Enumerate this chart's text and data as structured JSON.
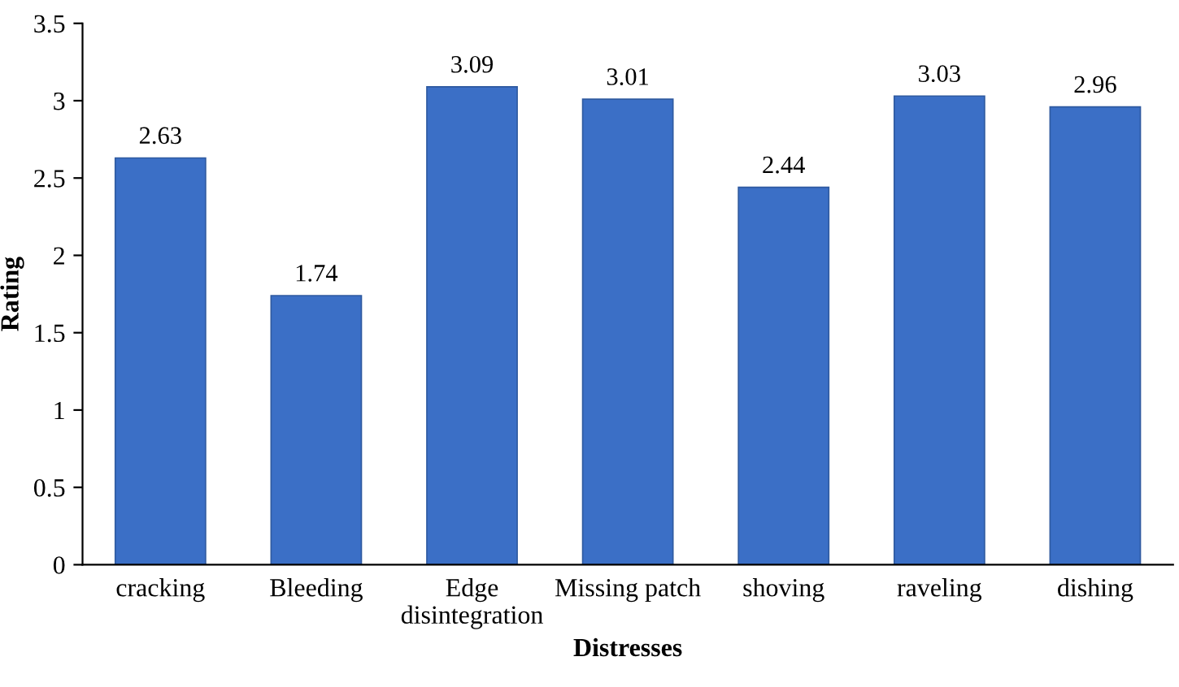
{
  "chart_data": {
    "type": "bar",
    "xlabel": "Distresses",
    "ylabel": "Rating",
    "categories": [
      "cracking",
      "Bleeding",
      "Edge disintegration",
      "Missing patch",
      "shoving",
      "raveling",
      "dishing"
    ],
    "values": [
      2.63,
      1.74,
      3.09,
      3.01,
      2.44,
      3.03,
      2.96
    ],
    "color": "#3b6fc6",
    "ylim": [
      0,
      3.5
    ],
    "yticks": [
      0,
      0.5,
      1,
      1.5,
      2,
      2.5,
      3,
      3.5
    ],
    "data_labels": true,
    "grid": false,
    "legend": false
  }
}
